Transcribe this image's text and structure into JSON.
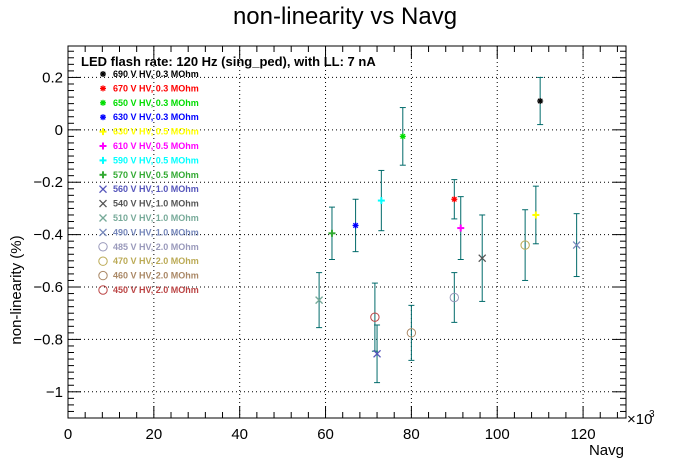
{
  "chart_data": {
    "type": "scatter",
    "title": "non-linearity vs Navg",
    "xlabel": "Navg",
    "ylabel": "non-linearity (%)",
    "x_multiplier_label": "×10",
    "x_multiplier_exp": "3",
    "xlim": [
      0,
      130
    ],
    "ylim": [
      -1.1,
      0.32
    ],
    "x_ticks": [
      0,
      20,
      40,
      60,
      80,
      100,
      120
    ],
    "y_ticks": [
      -1,
      -0.8,
      -0.6,
      -0.4,
      -0.2,
      0,
      0.2
    ],
    "x_tick_labels": [
      "0",
      "20",
      "40",
      "60",
      "80",
      "100",
      "120"
    ],
    "y_tick_labels": [
      "−1",
      "−0.8",
      "−0.6",
      "−0.4",
      "−0.2",
      "0",
      "0.2"
    ],
    "grid": true,
    "legend_header": "LED flash rate: 120 Hz  (sing_ped), with LL: 7 nA",
    "legend_position": "top-left",
    "error_bar_color": "#006a6a",
    "series": [
      {
        "name": "690 V HV, 0.3 MOhm",
        "color": "#000000",
        "marker": "*",
        "x": 110,
        "y": 0.11,
        "err": 0.09
      },
      {
        "name": "670 V HV, 0.3 MOhm",
        "color": "#ff0000",
        "marker": "*",
        "x": 90,
        "y": -0.265,
        "err": 0.075
      },
      {
        "name": "650 V HV, 0.3 MOhm",
        "color": "#00dd00",
        "marker": "*",
        "x": 78,
        "y": -0.025,
        "err": 0.11
      },
      {
        "name": "630 V HV, 0.3 MOhm",
        "color": "#0000ff",
        "marker": "*",
        "x": 67,
        "y": -0.365,
        "err": 0.1
      },
      {
        "name": "630 V HV, 0.5 MOhm",
        "color": "#ffff00",
        "marker": "+",
        "x": 109,
        "y": -0.325,
        "err": 0.11
      },
      {
        "name": "610 V HV, 0.5 MOhm",
        "color": "#ff00ff",
        "marker": "+",
        "x": 91.5,
        "y": -0.375,
        "err": 0.12
      },
      {
        "name": "590 V HV, 0.5 MOhm",
        "color": "#00ffff",
        "marker": "+",
        "x": 73,
        "y": -0.27,
        "err": 0.115
      },
      {
        "name": "570 V HV, 0.5 MOhm",
        "color": "#33aa33",
        "marker": "+",
        "x": 61.5,
        "y": -0.395,
        "err": 0.1
      },
      {
        "name": "560 V HV, 1.0 MOhm",
        "color": "#5555bb",
        "marker": "X",
        "x": 72,
        "y": -0.855,
        "err": 0.11
      },
      {
        "name": "540 V HV, 1.0 MOhm",
        "color": "#555555",
        "marker": "X",
        "x": 96.5,
        "y": -0.49,
        "err": 0.165
      },
      {
        "name": "510 V HV, 1.0 MOhm",
        "color": "#77aa99",
        "marker": "X",
        "x": 58.5,
        "y": -0.65,
        "err": 0.105
      },
      {
        "name": "490 V HV, 1.0 MOhm",
        "color": "#7788bb",
        "marker": "X",
        "x": 118.5,
        "y": -0.44,
        "err": 0.12
      },
      {
        "name": "485 V HV, 2.0 MOhm",
        "color": "#9999bb",
        "marker": "o",
        "x": 90,
        "y": -0.64,
        "err": 0.095
      },
      {
        "name": "470 V HV, 2.0 MOhm",
        "color": "#bbaa55",
        "marker": "o",
        "x": 106.5,
        "y": -0.44,
        "err": 0.135
      },
      {
        "name": "460 V HV, 2.0 MOhm",
        "color": "#aa8866",
        "marker": "o",
        "x": 80,
        "y": -0.775,
        "err": 0.105
      },
      {
        "name": "450 V HV, 2.0 MOhm",
        "color": "#bb4444",
        "marker": "o",
        "x": 71.5,
        "y": -0.715,
        "err": 0.13
      }
    ]
  }
}
